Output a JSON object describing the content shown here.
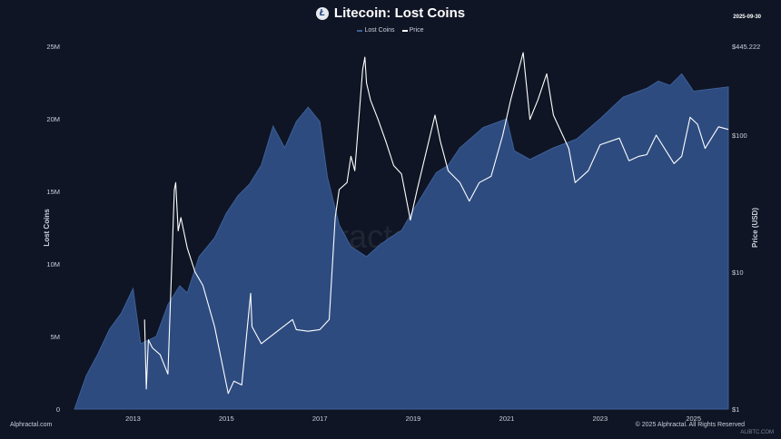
{
  "title": "Litecoin: Lost Coins",
  "logo_letter": "Ł",
  "date": "2025-09-30",
  "legend": {
    "lost_coins": "Lost Coins",
    "price": "Price"
  },
  "watermark": "Alphractal",
  "footer": {
    "left": "Alphractal.com",
    "right": "© 2025 Alphractal. All Rights Reserved"
  },
  "corner_mark": "ALIBTC.COM",
  "colors": {
    "background": "#0f1524",
    "lost_coins_fill": "#2d4b7f",
    "lost_coins_line": "#3d5f98",
    "price_line": "#ffffff"
  },
  "chart_data": {
    "type": "area",
    "xlim": [
      "2011-10-01",
      "2025-09-30"
    ],
    "x_ticks": [
      "2013",
      "2015",
      "2017",
      "2019",
      "2021",
      "2023",
      "2025"
    ],
    "y_left": {
      "label": "Lost Coins",
      "ylim": [
        0,
        25000000
      ],
      "ticks": [
        "0",
        "5M",
        "10M",
        "15M",
        "20M",
        "25M"
      ]
    },
    "y_right": {
      "label": "Price (USD)",
      "scale": "log",
      "ylim": [
        1,
        445.222
      ],
      "ticks": [
        "$1",
        "$10",
        "$100",
        "$445.222"
      ]
    },
    "series": [
      {
        "name": "Lost Coins",
        "axis": "left",
        "points": [
          [
            "2011-10-01",
            0
          ],
          [
            "2012-01-01",
            2300000
          ],
          [
            "2012-04-01",
            3800000
          ],
          [
            "2012-07-01",
            5500000
          ],
          [
            "2012-10-01",
            6600000
          ],
          [
            "2013-01-01",
            8300000
          ],
          [
            "2013-03-01",
            4500000
          ],
          [
            "2013-07-01",
            5000000
          ],
          [
            "2013-10-01",
            7200000
          ],
          [
            "2014-01-01",
            8500000
          ],
          [
            "2014-03-01",
            8000000
          ],
          [
            "2014-06-01",
            10500000
          ],
          [
            "2014-10-01",
            11800000
          ],
          [
            "2015-01-01",
            13500000
          ],
          [
            "2015-04-01",
            14700000
          ],
          [
            "2015-07-01",
            15500000
          ],
          [
            "2015-10-01",
            16800000
          ],
          [
            "2016-01-01",
            19500000
          ],
          [
            "2016-04-01",
            18000000
          ],
          [
            "2016-07-01",
            19800000
          ],
          [
            "2016-10-01",
            20800000
          ],
          [
            "2017-01-01",
            19800000
          ],
          [
            "2017-03-01",
            16000000
          ],
          [
            "2017-06-01",
            12700000
          ],
          [
            "2017-09-01",
            11200000
          ],
          [
            "2018-01-01",
            10500000
          ],
          [
            "2018-04-01",
            11200000
          ],
          [
            "2018-07-01",
            11800000
          ],
          [
            "2018-10-01",
            12300000
          ],
          [
            "2019-01-01",
            13700000
          ],
          [
            "2019-04-01",
            15000000
          ],
          [
            "2019-07-01",
            16300000
          ],
          [
            "2019-10-01",
            16800000
          ],
          [
            "2020-01-01",
            18000000
          ],
          [
            "2020-07-01",
            19400000
          ],
          [
            "2021-01-01",
            20000000
          ],
          [
            "2021-03-01",
            17800000
          ],
          [
            "2021-07-01",
            17200000
          ],
          [
            "2022-01-01",
            18000000
          ],
          [
            "2022-07-01",
            18600000
          ],
          [
            "2023-01-01",
            20000000
          ],
          [
            "2023-07-01",
            21500000
          ],
          [
            "2024-01-01",
            22100000
          ],
          [
            "2024-04-01",
            22600000
          ],
          [
            "2024-07-01",
            22300000
          ],
          [
            "2024-10-01",
            23100000
          ],
          [
            "2025-01-01",
            21900000
          ],
          [
            "2025-04-01",
            22000000
          ],
          [
            "2025-09-30",
            22200000
          ]
        ]
      },
      {
        "name": "Price",
        "axis": "right",
        "points": [
          [
            "2013-04-01",
            4.5
          ],
          [
            "2013-04-15",
            1.4
          ],
          [
            "2013-05-01",
            3.2
          ],
          [
            "2013-06-01",
            2.8
          ],
          [
            "2013-08-01",
            2.5
          ],
          [
            "2013-10-01",
            1.8
          ],
          [
            "2013-11-20",
            40
          ],
          [
            "2013-12-01",
            45
          ],
          [
            "2013-12-20",
            20
          ],
          [
            "2014-01-10",
            25
          ],
          [
            "2014-03-01",
            15
          ],
          [
            "2014-05-01",
            10
          ],
          [
            "2014-07-01",
            8
          ],
          [
            "2014-10-01",
            4
          ],
          [
            "2015-01-15",
            1.3
          ],
          [
            "2015-03-01",
            1.6
          ],
          [
            "2015-05-01",
            1.5
          ],
          [
            "2015-07-10",
            7
          ],
          [
            "2015-07-20",
            4
          ],
          [
            "2015-10-01",
            3
          ],
          [
            "2016-01-01",
            3.5
          ],
          [
            "2016-06-01",
            4.5
          ],
          [
            "2016-07-01",
            3.8
          ],
          [
            "2016-10-01",
            3.7
          ],
          [
            "2017-01-01",
            3.8
          ],
          [
            "2017-03-15",
            4.5
          ],
          [
            "2017-05-01",
            25
          ],
          [
            "2017-06-01",
            40
          ],
          [
            "2017-08-01",
            45
          ],
          [
            "2017-09-01",
            70
          ],
          [
            "2017-10-01",
            55
          ],
          [
            "2017-12-01",
            300
          ],
          [
            "2017-12-19",
            370
          ],
          [
            "2018-01-01",
            240
          ],
          [
            "2018-02-01",
            180
          ],
          [
            "2018-04-01",
            130
          ],
          [
            "2018-06-01",
            90
          ],
          [
            "2018-08-01",
            60
          ],
          [
            "2018-10-01",
            52
          ],
          [
            "2018-12-10",
            24
          ],
          [
            "2019-02-01",
            40
          ],
          [
            "2019-06-20",
            140
          ],
          [
            "2019-08-01",
            90
          ],
          [
            "2019-10-01",
            55
          ],
          [
            "2020-01-01",
            45
          ],
          [
            "2020-03-15",
            33
          ],
          [
            "2020-06-01",
            45
          ],
          [
            "2020-09-01",
            50
          ],
          [
            "2020-12-01",
            100
          ],
          [
            "2021-02-01",
            180
          ],
          [
            "2021-05-10",
            400
          ],
          [
            "2021-07-01",
            130
          ],
          [
            "2021-09-01",
            180
          ],
          [
            "2021-11-10",
            280
          ],
          [
            "2022-01-01",
            140
          ],
          [
            "2022-05-01",
            80
          ],
          [
            "2022-06-20",
            45
          ],
          [
            "2022-10-01",
            55
          ],
          [
            "2023-01-01",
            85
          ],
          [
            "2023-06-01",
            95
          ],
          [
            "2023-08-15",
            65
          ],
          [
            "2023-11-01",
            70
          ],
          [
            "2024-01-01",
            72
          ],
          [
            "2024-03-15",
            100
          ],
          [
            "2024-08-01",
            62
          ],
          [
            "2024-10-01",
            70
          ],
          [
            "2024-12-05",
            135
          ],
          [
            "2025-02-01",
            120
          ],
          [
            "2025-04-01",
            80
          ],
          [
            "2025-07-15",
            115
          ],
          [
            "2025-09-30",
            110
          ]
        ]
      }
    ]
  }
}
